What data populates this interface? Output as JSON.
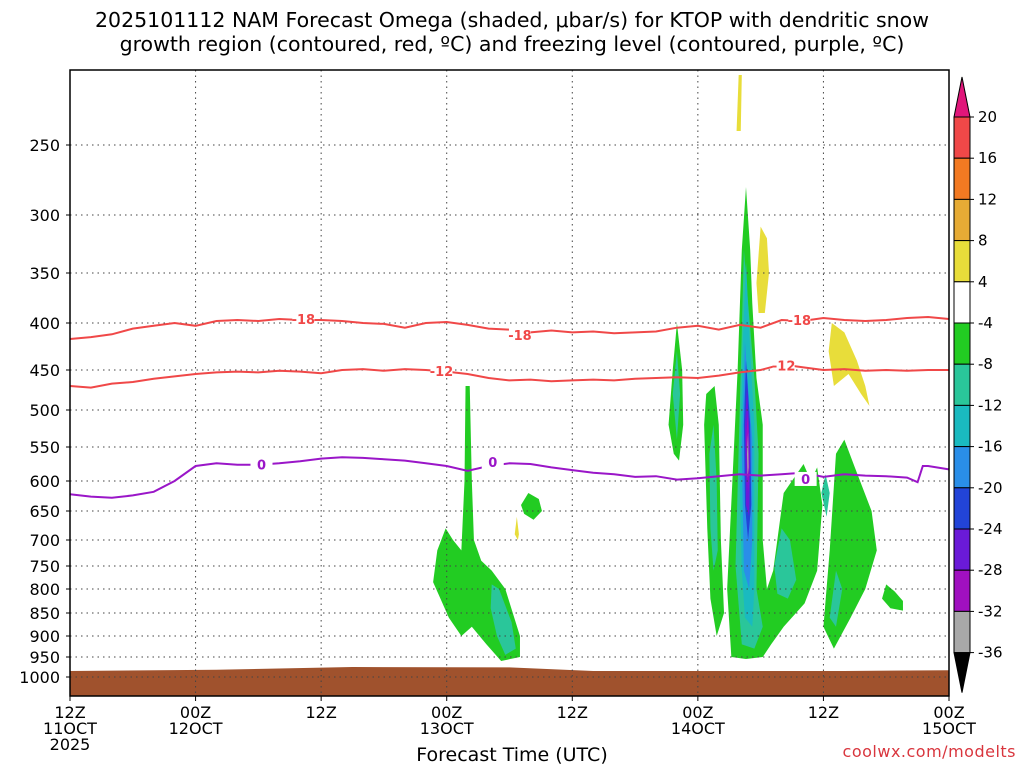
{
  "title": {
    "line1": "2025101112 NAM Forecast Omega (shaded, μbar/s) for KTOP with dendritic snow",
    "line2": "growth region (contoured, red, ºC) and freezing level (contoured, purple, ºC)"
  },
  "credit": "coolwx.com/modelts",
  "colors": {
    "ground": "#a0522d",
    "contour_red": "#f04848",
    "contour_purple": "#9a16c8",
    "grid": "#444444"
  },
  "chart_data": {
    "type": "heatmap",
    "xlabel": "Forecast Time (UTC)",
    "ylabel": "",
    "x_unit": "hours since 2025-10-11 12Z",
    "xlim": [
      0,
      84
    ],
    "y_unit": "hPa",
    "ylim": [
      1040,
      200
    ],
    "y_ticks": [
      250,
      300,
      350,
      400,
      450,
      500,
      550,
      600,
      650,
      700,
      750,
      800,
      850,
      900,
      950,
      1000
    ],
    "x_ticks": [
      {
        "x": 0,
        "line1": "12Z",
        "line2": "11OCT",
        "line3": "2025"
      },
      {
        "x": 12,
        "line1": "00Z",
        "line2": "12OCT",
        "line3": ""
      },
      {
        "x": 24,
        "line1": "12Z",
        "line2": "",
        "line3": ""
      },
      {
        "x": 36,
        "line1": "00Z",
        "line2": "13OCT",
        "line3": ""
      },
      {
        "x": 48,
        "line1": "12Z",
        "line2": "",
        "line3": ""
      },
      {
        "x": 60,
        "line1": "00Z",
        "line2": "14OCT",
        "line3": ""
      },
      {
        "x": 72,
        "line1": "12Z",
        "line2": "",
        "line3": ""
      },
      {
        "x": 84,
        "line1": "00Z",
        "line2": "15OCT",
        "line3": ""
      }
    ],
    "colorbar": {
      "labels": [
        "20",
        "16",
        "12",
        "8",
        "4",
        "-4",
        "-8",
        "-12",
        "-16",
        "-20",
        "-24",
        "-28",
        "-32",
        "-36"
      ],
      "bands": [
        {
          "range": "16 to 20",
          "color": "#f04848"
        },
        {
          "range": "12 to 16",
          "color": "#f37a22"
        },
        {
          "range": "8 to 12",
          "color": "#e6ab35"
        },
        {
          "range": "4 to 8",
          "color": "#e8dd3a"
        },
        {
          "range": "-4 to 4",
          "color": "#ffffff"
        },
        {
          "range": "-8 to -4",
          "color": "#22cc22"
        },
        {
          "range": "-12 to -8",
          "color": "#2ac69a"
        },
        {
          "range": "-16 to -12",
          "color": "#1abac0"
        },
        {
          "range": "-20 to -16",
          "color": "#2a8ee8"
        },
        {
          "range": "-24 to -20",
          "color": "#2244d8"
        },
        {
          "range": "-28 to -24",
          "color": "#6a1ad8"
        },
        {
          "range": "-32 to -28",
          "color": "#a010c0"
        },
        {
          "range": "-36 to -32",
          "color": "#a8a8a8"
        }
      ],
      "top_arrow_color": "#e0167a",
      "bottom_arrow_color": "#000000"
    },
    "contours": [
      {
        "name": "-18C isotherm",
        "label": "-18",
        "color": "red",
        "label_positions": [
          [
            22.3,
            396
          ],
          [
            43,
            413
          ],
          [
            69.7,
            397
          ]
        ],
        "points": [
          [
            0,
            417
          ],
          [
            2,
            415
          ],
          [
            4,
            412
          ],
          [
            6,
            406
          ],
          [
            8,
            403
          ],
          [
            10,
            400
          ],
          [
            12,
            403
          ],
          [
            14,
            398
          ],
          [
            16,
            397
          ],
          [
            18,
            398
          ],
          [
            20,
            396
          ],
          [
            22,
            397
          ],
          [
            24,
            397
          ],
          [
            26,
            398
          ],
          [
            28,
            400
          ],
          [
            30,
            401
          ],
          [
            32,
            405
          ],
          [
            34,
            400
          ],
          [
            36,
            399
          ],
          [
            38,
            402
          ],
          [
            40,
            406
          ],
          [
            42,
            407
          ],
          [
            44,
            410
          ],
          [
            46,
            408
          ],
          [
            48,
            410
          ],
          [
            50,
            409
          ],
          [
            52,
            411
          ],
          [
            54,
            410
          ],
          [
            56,
            409
          ],
          [
            58,
            405
          ],
          [
            60,
            403
          ],
          [
            62,
            407
          ],
          [
            64,
            402
          ],
          [
            66,
            405
          ],
          [
            68,
            397
          ],
          [
            70,
            398
          ],
          [
            72,
            395
          ],
          [
            74,
            397
          ],
          [
            76,
            398
          ],
          [
            78,
            397
          ],
          [
            80,
            395
          ],
          [
            82,
            394
          ],
          [
            84,
            396
          ]
        ]
      },
      {
        "name": "-12C isotherm",
        "label": "-12",
        "color": "red",
        "label_positions": [
          [
            35.5,
            451
          ],
          [
            68.2,
            445
          ]
        ],
        "points": [
          [
            0,
            470
          ],
          [
            2,
            472
          ],
          [
            4,
            467
          ],
          [
            6,
            465
          ],
          [
            8,
            461
          ],
          [
            10,
            458
          ],
          [
            12,
            455
          ],
          [
            14,
            453
          ],
          [
            16,
            452
          ],
          [
            18,
            453
          ],
          [
            20,
            451
          ],
          [
            22,
            452
          ],
          [
            24,
            454
          ],
          [
            26,
            450
          ],
          [
            28,
            449
          ],
          [
            30,
            451
          ],
          [
            32,
            449
          ],
          [
            34,
            450
          ],
          [
            36,
            452
          ],
          [
            38,
            455
          ],
          [
            40,
            460
          ],
          [
            42,
            463
          ],
          [
            44,
            462
          ],
          [
            46,
            464
          ],
          [
            48,
            463
          ],
          [
            50,
            462
          ],
          [
            52,
            463
          ],
          [
            54,
            461
          ],
          [
            56,
            460
          ],
          [
            58,
            459
          ],
          [
            60,
            460
          ],
          [
            62,
            457
          ],
          [
            64,
            453
          ],
          [
            66,
            450
          ],
          [
            68,
            444
          ],
          [
            70,
            447
          ],
          [
            72,
            450
          ],
          [
            74,
            449
          ],
          [
            76,
            451
          ],
          [
            78,
            450
          ],
          [
            80,
            451
          ],
          [
            82,
            450
          ],
          [
            84,
            450
          ]
        ]
      },
      {
        "name": "0C freezing level",
        "label": "0",
        "color": "purple",
        "label_positions": [
          [
            18.3,
            576
          ],
          [
            40.4,
            572
          ],
          [
            70.3,
            597
          ]
        ],
        "points": [
          [
            0,
            622
          ],
          [
            2,
            626
          ],
          [
            4,
            628
          ],
          [
            6,
            624
          ],
          [
            8,
            618
          ],
          [
            10,
            600
          ],
          [
            12,
            578
          ],
          [
            14,
            574
          ],
          [
            16,
            576
          ],
          [
            18,
            576
          ],
          [
            20,
            574
          ],
          [
            22,
            571
          ],
          [
            24,
            567
          ],
          [
            26,
            565
          ],
          [
            28,
            566
          ],
          [
            30,
            568
          ],
          [
            32,
            570
          ],
          [
            34,
            574
          ],
          [
            36,
            578
          ],
          [
            38,
            585
          ],
          [
            40,
            578
          ],
          [
            42,
            574
          ],
          [
            44,
            575
          ],
          [
            46,
            580
          ],
          [
            48,
            584
          ],
          [
            50,
            588
          ],
          [
            52,
            590
          ],
          [
            54,
            594
          ],
          [
            56,
            593
          ],
          [
            58,
            598
          ],
          [
            60,
            596
          ],
          [
            62,
            593
          ],
          [
            64,
            590
          ],
          [
            66,
            592
          ],
          [
            68,
            590
          ],
          [
            70,
            588
          ],
          [
            72,
            594
          ],
          [
            74,
            590
          ],
          [
            76,
            592
          ],
          [
            78,
            593
          ],
          [
            80,
            595
          ],
          [
            81,
            602
          ],
          [
            81.5,
            578
          ],
          [
            82,
            578
          ],
          [
            84,
            583
          ]
        ]
      }
    ],
    "shaded_regions": [
      {
        "level": "-8 to -4",
        "times": [
          34.7,
          39.3
        ],
        "pressure": [
          690,
          945
        ]
      },
      {
        "level": "-8 to -4",
        "times": [
          37.7,
          38.6
        ],
        "pressure": [
          470,
          690
        ]
      },
      {
        "level": "-8 to -4",
        "times": [
          43.1,
          45.1
        ],
        "pressure": [
          615,
          665
        ]
      },
      {
        "level": "-16 to -8",
        "times": [
          40.3,
          43
        ],
        "pressure": [
          760,
          960
        ]
      },
      {
        "level": "-12 to -4",
        "times": [
          57.2,
          58.6
        ],
        "pressure": [
          400,
          570
        ]
      },
      {
        "level": "-16 to -4",
        "times": [
          60.6,
          62.5
        ],
        "pressure": [
          470,
          900
        ]
      },
      {
        "level": "-36 to -4",
        "times": [
          62.8,
          66.2
        ],
        "pressure": [
          280,
          950
        ]
      },
      {
        "level": "-12 to -4",
        "times": [
          65.4,
          71.9
        ],
        "pressure": [
          580,
          920
        ]
      },
      {
        "level": "-12 to -4",
        "times": [
          72,
          77.1
        ],
        "pressure": [
          540,
          930
        ]
      },
      {
        "level": "-8 to -4",
        "times": [
          77.6,
          79.6
        ],
        "pressure": [
          790,
          845
        ]
      },
      {
        "level": "4 to 8",
        "times": [
          65.6,
          66.8
        ],
        "pressure": [
          305,
          395
        ]
      },
      {
        "level": "4 to 8",
        "times": [
          72.5,
          76.4
        ],
        "pressure": [
          400,
          500
        ]
      },
      {
        "level": "4 to 8",
        "times": [
          63.7,
          64.2
        ],
        "pressure": [
          200,
          240
        ]
      },
      {
        "level": "4 to 8",
        "times": [
          42.5,
          42.9
        ],
        "pressure": [
          660,
          700
        ]
      }
    ]
  }
}
